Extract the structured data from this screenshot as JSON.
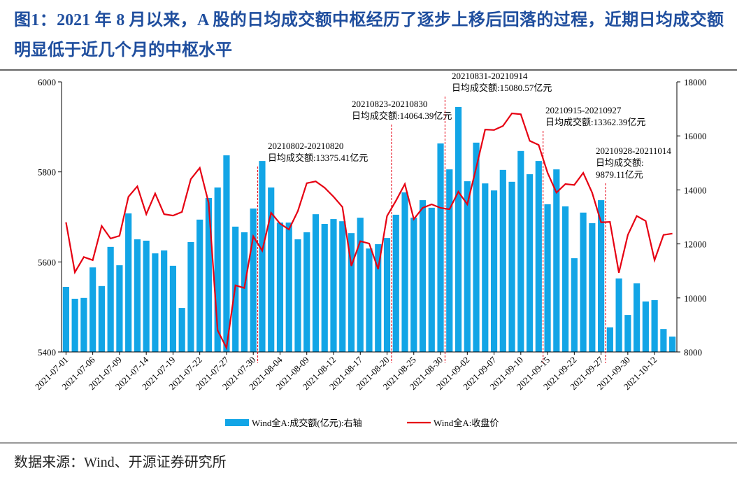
{
  "chart_data": {
    "type": "combo",
    "title": "图1：2021 年 8 月以来，A 股的日均成交额中枢经历了逐步上移后回落的过程，近期日均成交额明显低于近几个月的中枢水平",
    "categories": [
      "2021-07-01",
      null,
      null,
      "2021-07-06",
      null,
      null,
      "2021-07-09",
      null,
      null,
      "2021-07-14",
      null,
      null,
      "2021-07-19",
      null,
      null,
      "2021-07-22",
      null,
      null,
      "2021-07-27",
      null,
      null,
      "2021-07-30",
      null,
      null,
      "2021-08-04",
      null,
      null,
      "2021-08-09",
      null,
      null,
      "2021-08-12",
      null,
      null,
      "2021-08-17",
      null,
      null,
      "2021-08-20",
      null,
      null,
      "2021-08-25",
      null,
      null,
      "2021-08-30",
      null,
      null,
      "2021-09-02",
      null,
      null,
      "2021-09-07",
      null,
      null,
      "2021-09-10",
      null,
      null,
      "2021-09-15",
      null,
      null,
      "2021-09-22",
      null,
      null,
      "2021-09-27",
      null,
      null,
      "2021-09-30",
      null,
      null,
      "2021-10-12",
      null,
      null
    ],
    "series": [
      {
        "name": "Wind全A:成交额(亿元):右轴",
        "color": "#12a5e6",
        "type": "bar",
        "axis": "y2",
        "values": [
          10410,
          9970,
          10000,
          11130,
          10440,
          11890,
          11210,
          13130,
          12170,
          12120,
          11650,
          11760,
          11190,
          9630,
          12070,
          12900,
          13700,
          14090,
          15280,
          12640,
          12430,
          13310,
          15070,
          14090,
          12790,
          12790,
          12170,
          12430,
          13100,
          12740,
          12920,
          12840,
          12400,
          12970,
          11830,
          11990,
          12220,
          13080,
          13910,
          12970,
          13620,
          13340,
          15720,
          14760,
          17070,
          14320,
          15750,
          14240,
          13980,
          14740,
          14300,
          15440,
          14580,
          15070,
          13470,
          14760,
          13390,
          11470,
          13160,
          12770,
          13620,
          8910,
          10720,
          9370,
          10540,
          9870,
          9920,
          8850,
          8570
        ]
      },
      {
        "name": "Wind全A:收盘价",
        "color": "#e60012",
        "type": "line",
        "values": [
          5688,
          5577,
          5611,
          5604,
          5680,
          5652,
          5658,
          5745,
          5768,
          5706,
          5752,
          5706,
          5703,
          5711,
          5784,
          5809,
          5731,
          5448,
          5409,
          5548,
          5542,
          5657,
          5625,
          5709,
          5685,
          5672,
          5713,
          5775,
          5779,
          5765,
          5745,
          5722,
          5591,
          5646,
          5641,
          5584,
          5702,
          5736,
          5773,
          5695,
          5720,
          5728,
          5720,
          5717,
          5756,
          5728,
          5809,
          5894,
          5893,
          5902,
          5930,
          5928,
          5869,
          5860,
          5798,
          5754,
          5773,
          5771,
          5798,
          5754,
          5688,
          5689,
          5576,
          5660,
          5702,
          5691,
          5604,
          5660,
          5663
        ]
      }
    ],
    "ylim": [
      5400,
      6000
    ],
    "yticks": [
      5400,
      5600,
      5800,
      6000
    ],
    "y2lim": [
      8000,
      18000
    ],
    "y2ticks": [
      8000,
      10000,
      12000,
      14000,
      16000,
      18000
    ],
    "annotations": [
      {
        "lines": [
          "20210802-20210820",
          "日均成交额:13375.41亿元"
        ]
      },
      {
        "lines": [
          "20210823-20210830",
          "日均成交额:14064.39亿元"
        ]
      },
      {
        "lines": [
          "20210831-20210914",
          "日均成交额:15080.57亿元"
        ]
      },
      {
        "lines": [
          "20210915-20210927",
          "日均成交额:13362.39亿元"
        ]
      },
      {
        "lines": [
          "20210928-20211014",
          "日均成交额:",
          "9879.11亿元"
        ]
      }
    ],
    "source": "数据来源：Wind、开源证券研究所"
  }
}
